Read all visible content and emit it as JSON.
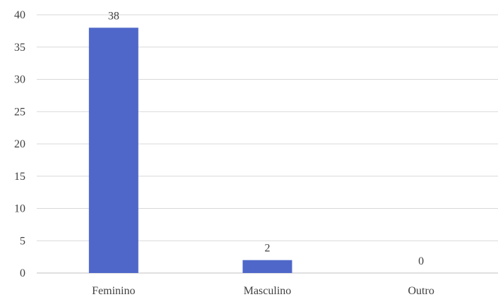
{
  "chart_data": {
    "type": "bar",
    "categories": [
      "Feminino",
      "Masculino",
      "Outro"
    ],
    "values": [
      38,
      2,
      0
    ],
    "title": "",
    "xlabel": "",
    "ylabel": "",
    "ylim": [
      0,
      40
    ],
    "yticks": [
      0,
      5,
      10,
      15,
      20,
      25,
      30,
      35,
      40
    ],
    "grid": true,
    "legend": "none",
    "data_labels": [
      "38",
      "2",
      "0"
    ],
    "bar_color": "#4f67c9"
  }
}
